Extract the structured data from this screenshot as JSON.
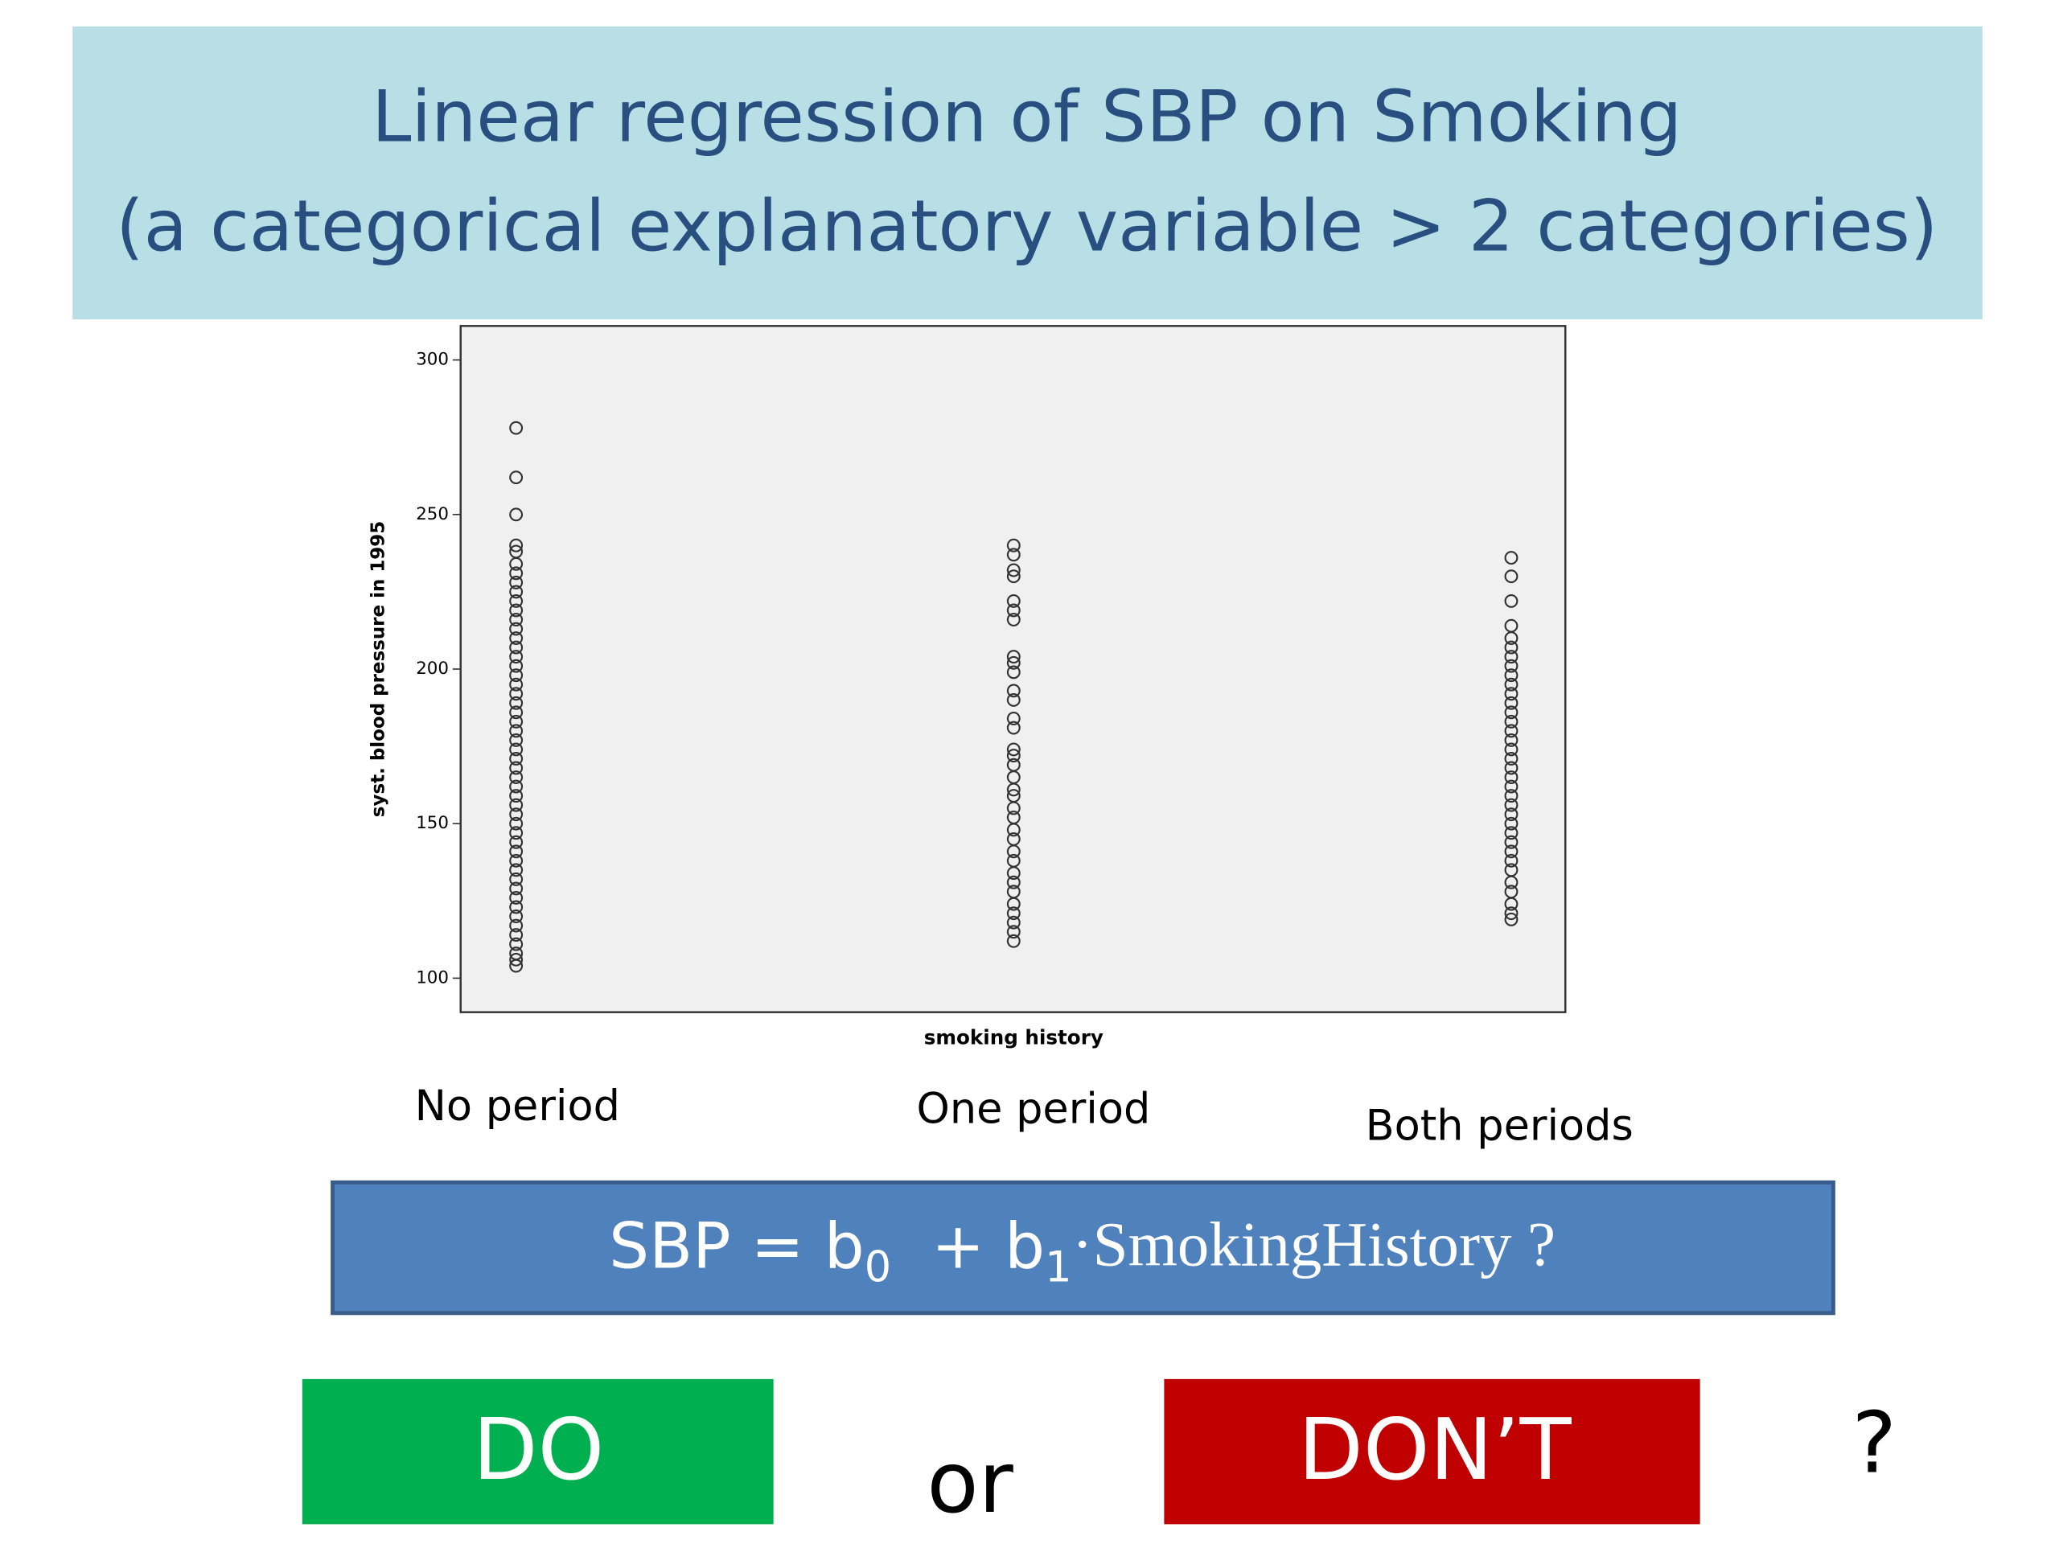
{
  "slide": {
    "title_line1": "Linear regression of SBP on Smoking",
    "title_line2": "(a categorical explanatory variable > 2 categories)",
    "formula": {
      "lhs": "SBP = b",
      "sub0": "0",
      "plus": "  + b",
      "sub1": "1",
      "rhs": "·SmokingHistory ?"
    },
    "do": "DO",
    "or": "or",
    "dont": "DON’T",
    "question": "?"
  },
  "chart_data": {
    "type": "strip",
    "x_label": "smoking history",
    "y_label": "syst. blood pressure in 1995",
    "categories": [
      "No period",
      "One period",
      "Both periods"
    ],
    "values": [
      [
        278,
        262,
        250,
        240,
        238,
        234,
        231,
        228,
        225,
        222,
        219,
        216,
        213,
        210,
        207,
        204,
        201,
        198,
        195,
        192,
        189,
        186,
        183,
        180,
        177,
        174,
        171,
        168,
        165,
        162,
        159,
        156,
        153,
        150,
        147,
        144,
        141,
        138,
        135,
        132,
        129,
        126,
        123,
        120,
        117,
        114,
        111,
        108,
        106,
        104
      ],
      [
        240,
        237,
        232,
        230,
        222,
        219,
        216,
        204,
        202,
        199,
        193,
        190,
        184,
        181,
        174,
        172,
        169,
        165,
        161,
        159,
        155,
        152,
        148,
        145,
        141,
        138,
        134,
        131,
        128,
        124,
        121,
        118,
        115,
        112
      ],
      [
        236,
        230,
        222,
        214,
        210,
        207,
        204,
        201,
        198,
        195,
        192,
        189,
        186,
        183,
        180,
        177,
        174,
        171,
        168,
        165,
        162,
        159,
        156,
        153,
        150,
        147,
        144,
        141,
        138,
        135,
        131,
        128,
        124,
        121,
        119
      ]
    ],
    "color": "#333333",
    "ylim": [
      89,
      311
    ],
    "yticks": [
      100,
      150,
      200,
      250,
      300
    ]
  }
}
